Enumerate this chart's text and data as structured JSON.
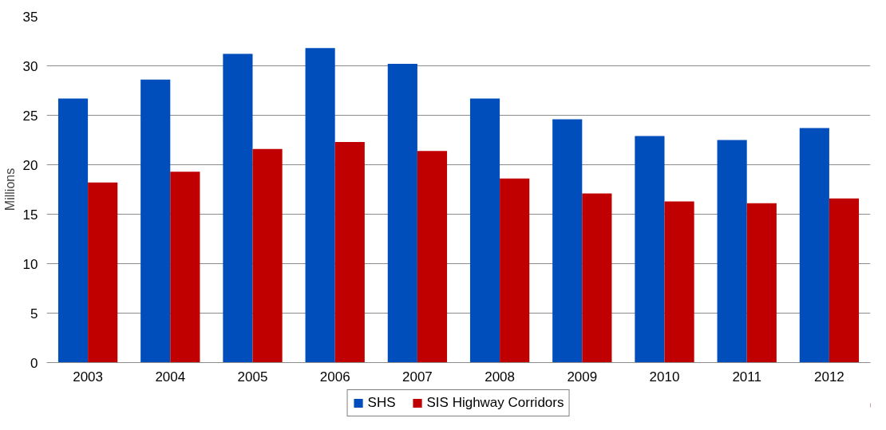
{
  "chart_data": {
    "type": "bar",
    "ylabel": "Millions",
    "categories": [
      "2003",
      "2004",
      "2005",
      "2006",
      "2007",
      "2008",
      "2009",
      "2010",
      "2011",
      "2012"
    ],
    "series": [
      {
        "name": "SHS",
        "color": "#004ebc",
        "values": [
          26.7,
          28.6,
          31.2,
          31.8,
          30.2,
          26.7,
          24.6,
          22.9,
          22.5,
          23.7
        ]
      },
      {
        "name": "SIS Highway Corridors",
        "color": "#c00000",
        "values": [
          18.2,
          19.3,
          21.6,
          22.3,
          21.4,
          18.6,
          17.1,
          16.3,
          16.1,
          16.6
        ]
      }
    ],
    "ylim": [
      0,
      35
    ],
    "yticks": [
      0,
      5,
      10,
      15,
      20,
      25,
      30,
      35
    ],
    "grid": "y",
    "legend": "bottom"
  }
}
